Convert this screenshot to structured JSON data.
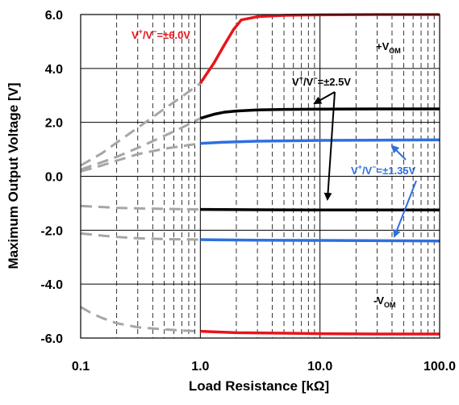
{
  "chart_data": {
    "type": "line",
    "title": "",
    "xlabel": "Load Resistance [kΩ]",
    "ylabel": "Maximum Output Voltage [V]",
    "x_scale": "log",
    "xlim": [
      0.1,
      100
    ],
    "ylim": [
      -6,
      6
    ],
    "x_ticks": [
      0.1,
      1.0,
      10.0,
      100.0
    ],
    "x_tick_labels": [
      "0.1",
      "1.0",
      "10.0",
      "100.0"
    ],
    "y_ticks": [
      6,
      4,
      2,
      0,
      -2,
      -4,
      -6
    ],
    "y_tick_labels": [
      "6.0",
      "4.0",
      "2.0",
      "0.0",
      "-2.0",
      "-4.0",
      "-6.0"
    ],
    "grid": true,
    "annotations": {
      "v6": {
        "base": "V",
        "sup1": "+",
        "mid": "/V",
        "sup2": "−",
        "tail": "=±6.0V",
        "color": "#e8141b"
      },
      "v25": {
        "base": "V",
        "sup1": "+",
        "mid": "/V",
        "sup2": "−",
        "tail": "=±2.5V",
        "color": "#000000"
      },
      "v135": {
        "base": "V",
        "sup1": "+",
        "mid": "/V",
        "sup2": "−",
        "tail": "=±1.35V",
        "color": "#2f6fe0"
      },
      "vom_pos": {
        "base": "+V",
        "sub": "OM",
        "color": "#000000"
      },
      "vom_neg": {
        "base": "-V",
        "sub": "OM",
        "color": "#000000"
      }
    },
    "series": [
      {
        "group": "6.0V",
        "part": "positive",
        "style": "solid",
        "color": "#e8141b",
        "x": [
          1.0,
          1.3,
          1.6,
          1.9,
          2.2,
          3,
          5,
          10,
          30,
          100
        ],
        "y": [
          3.45,
          4.2,
          4.9,
          5.45,
          5.8,
          5.92,
          5.97,
          5.99,
          6.0,
          6.0
        ]
      },
      {
        "group": "6.0V",
        "part": "negative",
        "style": "solid",
        "color": "#e8141b",
        "x": [
          1.0,
          2,
          5,
          10,
          30,
          100
        ],
        "y": [
          -5.75,
          -5.8,
          -5.82,
          -5.84,
          -5.85,
          -5.85
        ]
      },
      {
        "group": "2.5V",
        "part": "positive",
        "style": "solid",
        "color": "#000000",
        "x": [
          1.0,
          1.3,
          1.6,
          2,
          3,
          5,
          10,
          30,
          100
        ],
        "y": [
          2.15,
          2.3,
          2.38,
          2.42,
          2.46,
          2.48,
          2.49,
          2.5,
          2.5
        ]
      },
      {
        "group": "2.5V",
        "part": "negative",
        "style": "solid",
        "color": "#000000",
        "x": [
          1.0,
          3,
          10,
          100
        ],
        "y": [
          -1.23,
          -1.24,
          -1.25,
          -1.25
        ]
      },
      {
        "group": "1.35V",
        "part": "positive",
        "style": "solid",
        "color": "#2f6fe0",
        "x": [
          1.0,
          1.5,
          3,
          10,
          30,
          100
        ],
        "y": [
          1.22,
          1.26,
          1.3,
          1.33,
          1.34,
          1.35
        ]
      },
      {
        "group": "1.35V",
        "part": "negative",
        "style": "solid",
        "color": "#2f6fe0",
        "x": [
          1.0,
          3,
          10,
          100
        ],
        "y": [
          -2.35,
          -2.37,
          -2.38,
          -2.4
        ]
      },
      {
        "group": "6.0V",
        "part": "positive-low-load",
        "style": "dashed",
        "color": "#a6a6a6",
        "x": [
          0.1,
          0.15,
          0.2,
          0.3,
          0.5,
          0.7,
          1.0
        ],
        "y": [
          0.4,
          0.85,
          1.25,
          1.8,
          2.5,
          2.95,
          3.45
        ]
      },
      {
        "group": "2.5V",
        "part": "positive-low-load",
        "style": "dashed",
        "color": "#a6a6a6",
        "x": [
          0.1,
          0.15,
          0.2,
          0.3,
          0.5,
          0.7,
          1.0
        ],
        "y": [
          0.25,
          0.52,
          0.72,
          1.05,
          1.5,
          1.8,
          2.15
        ]
      },
      {
        "group": "1.35V",
        "part": "positive-low-load",
        "style": "dashed",
        "color": "#a6a6a6",
        "x": [
          0.1,
          0.15,
          0.2,
          0.3,
          0.5,
          0.7,
          1.0
        ],
        "y": [
          0.18,
          0.4,
          0.58,
          0.82,
          1.02,
          1.12,
          1.22
        ]
      },
      {
        "group": "2.5V",
        "part": "negative-low-load",
        "style": "dashed",
        "color": "#a6a6a6",
        "x": [
          0.1,
          0.15,
          0.2,
          0.3,
          0.5,
          0.7,
          1.0
        ],
        "y": [
          -1.1,
          -1.14,
          -1.17,
          -1.19,
          -1.21,
          -1.22,
          -1.23
        ]
      },
      {
        "group": "1.35V",
        "part": "negative-low-load",
        "style": "dashed",
        "color": "#a6a6a6",
        "x": [
          0.1,
          0.15,
          0.2,
          0.3,
          0.5,
          0.7,
          1.0
        ],
        "y": [
          -2.12,
          -2.2,
          -2.25,
          -2.3,
          -2.33,
          -2.34,
          -2.35
        ]
      },
      {
        "group": "6.0V",
        "part": "negative-low-load",
        "style": "dashed",
        "color": "#a6a6a6",
        "x": [
          0.1,
          0.12,
          0.15,
          0.2,
          0.3,
          0.5,
          0.7,
          1.0
        ],
        "y": [
          -4.85,
          -5.05,
          -5.25,
          -5.45,
          -5.6,
          -5.68,
          -5.72,
          -5.75
        ]
      }
    ]
  }
}
